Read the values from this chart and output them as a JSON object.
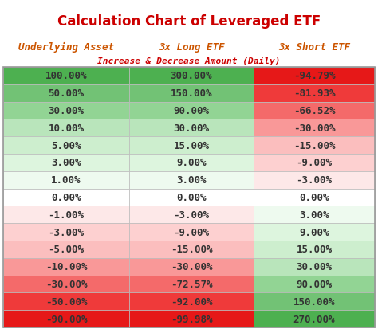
{
  "title": "Calculation Chart of Leveraged ETF",
  "subtitle": "Increase & Decrease Amount (Daily)",
  "col_headers": [
    "Underlying Asset",
    "3x Long ETF",
    "3x Short ETF"
  ],
  "rows": [
    [
      "100.00%",
      "300.00%",
      "-94.79%"
    ],
    [
      "50.00%",
      "150.00%",
      "-81.93%"
    ],
    [
      "30.00%",
      "90.00%",
      "-66.52%"
    ],
    [
      "10.00%",
      "30.00%",
      "-30.00%"
    ],
    [
      "5.00%",
      "15.00%",
      "-15.00%"
    ],
    [
      "3.00%",
      "9.00%",
      "-9.00%"
    ],
    [
      "1.00%",
      "3.00%",
      "-3.00%"
    ],
    [
      "0.00%",
      "0.00%",
      "0.00%"
    ],
    [
      "-1.00%",
      "-3.00%",
      "3.00%"
    ],
    [
      "-3.00%",
      "-9.00%",
      "9.00%"
    ],
    [
      "-5.00%",
      "-15.00%",
      "15.00%"
    ],
    [
      "-10.00%",
      "-30.00%",
      "30.00%"
    ],
    [
      "-30.00%",
      "-72.57%",
      "90.00%"
    ],
    [
      "-50.00%",
      "-92.00%",
      "150.00%"
    ],
    [
      "-90.00%",
      "-99.98%",
      "270.00%"
    ]
  ],
  "col1_colors": [
    "#4db050",
    "#72c275",
    "#92d494",
    "#b9e5bb",
    "#cdeece",
    "#ddf5de",
    "#eefaef",
    "#ffffff",
    "#fde8e8",
    "#fdd0d0",
    "#fbbebe",
    "#f99898",
    "#f46a6a",
    "#ef3a3a",
    "#e61818"
  ],
  "col2_colors": [
    "#4db050",
    "#72c275",
    "#92d494",
    "#b9e5bb",
    "#cdeece",
    "#ddf5de",
    "#eefaef",
    "#ffffff",
    "#fde8e8",
    "#fdd0d0",
    "#fbbebe",
    "#f99898",
    "#f46a6a",
    "#ef3a3a",
    "#e61818"
  ],
  "col3_colors": [
    "#e61818",
    "#ef3a3a",
    "#f46a6a",
    "#f99898",
    "#fbbebe",
    "#fdd0d0",
    "#fde8e8",
    "#ffffff",
    "#eefaef",
    "#ddf5de",
    "#cdeece",
    "#b9e5bb",
    "#92d494",
    "#72c275",
    "#4db050"
  ],
  "title_color": "#cc0000",
  "header_color": "#cc5500",
  "subtitle_color": "#cc0000",
  "text_color": "#333333",
  "border_color": "#bbbbbb",
  "bg_color": "#ffffff",
  "title_fontsize": 12,
  "header_fontsize": 9,
  "subtitle_fontsize": 8,
  "cell_fontsize": 9
}
